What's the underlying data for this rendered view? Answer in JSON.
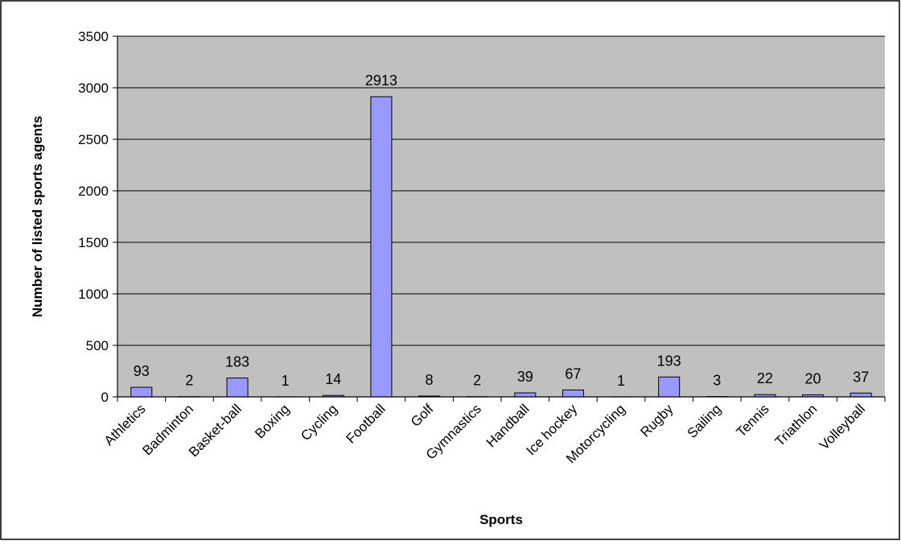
{
  "chart_data": {
    "type": "bar",
    "title": "",
    "xlabel": "Sports",
    "ylabel": "Number of listed sports agents",
    "ylim": [
      0,
      3500
    ],
    "yticks": [
      0,
      500,
      1000,
      1500,
      2000,
      2500,
      3000,
      3500
    ],
    "grid": true,
    "legend": "none",
    "categories": [
      "Athletics",
      "Badminton",
      "Basket-ball",
      "Boxing",
      "Cycling",
      "Football",
      "Golf",
      "Gymnastics",
      "Handball",
      "Ice hockey",
      "Motorcycling",
      "Rugby",
      "Sailing",
      "Tennis",
      "Triathlon",
      "Volleyball"
    ],
    "values": [
      93,
      2,
      183,
      1,
      14,
      2913,
      8,
      2,
      39,
      67,
      1,
      193,
      3,
      22,
      20,
      37
    ],
    "colors": {
      "plot_background": "#c0c0c0",
      "bar_fill": "#9999ff",
      "bar_stroke": "#000000",
      "grid": "#000000",
      "frame": "#000000"
    }
  }
}
